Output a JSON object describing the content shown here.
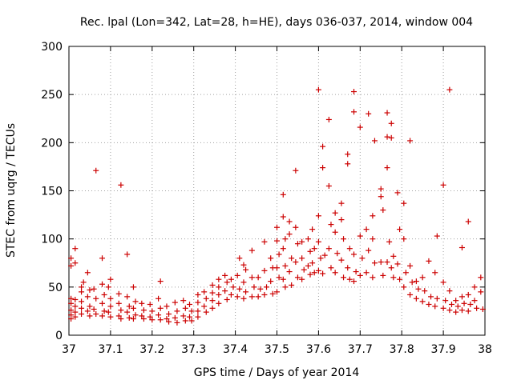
{
  "chart_data": {
    "type": "scatter",
    "title": "Rec. lpal (Lon=342, Lat=28, h=HE), days 036-037, 2014, window 004",
    "xlabel": "GPS time / Days of year 2014",
    "ylabel": "STEC from uqrg / TECUs",
    "xlim": [
      37,
      38
    ],
    "ylim": [
      0,
      300
    ],
    "xticks": [
      "37",
      "37.1",
      "37.2",
      "37.3",
      "37.4",
      "37.5",
      "37.6",
      "37.7",
      "37.8",
      "37.9",
      "38"
    ],
    "yticks": [
      "0",
      "50",
      "100",
      "150",
      "200",
      "250",
      "300"
    ],
    "grid": true,
    "marker": "plus",
    "color": "#cc0000",
    "points": [
      [
        37.005,
        80
      ],
      [
        37.005,
        72
      ],
      [
        37.005,
        38
      ],
      [
        37.005,
        33
      ],
      [
        37.005,
        26
      ],
      [
        37.005,
        21
      ],
      [
        37.005,
        17
      ],
      [
        37.015,
        90
      ],
      [
        37.015,
        75
      ],
      [
        37.015,
        37
      ],
      [
        37.015,
        30
      ],
      [
        37.015,
        24
      ],
      [
        37.015,
        19
      ],
      [
        37.03,
        50
      ],
      [
        37.035,
        55
      ],
      [
        37.03,
        45
      ],
      [
        37.03,
        35
      ],
      [
        37.03,
        28
      ],
      [
        37.03,
        22
      ],
      [
        37.045,
        65
      ],
      [
        37.05,
        47
      ],
      [
        37.045,
        40
      ],
      [
        37.05,
        30
      ],
      [
        37.045,
        25
      ],
      [
        37.05,
        20
      ],
      [
        37.065,
        171
      ],
      [
        37.06,
        48
      ],
      [
        37.065,
        38
      ],
      [
        37.06,
        27
      ],
      [
        37.065,
        22
      ],
      [
        37.08,
        80
      ],
      [
        37.08,
        53
      ],
      [
        37.085,
        42
      ],
      [
        37.08,
        33
      ],
      [
        37.085,
        25
      ],
      [
        37.08,
        20
      ],
      [
        37.1,
        58
      ],
      [
        37.095,
        50
      ],
      [
        37.1,
        38
      ],
      [
        37.1,
        30
      ],
      [
        37.095,
        24
      ],
      [
        37.1,
        19
      ],
      [
        37.125,
        156
      ],
      [
        37.12,
        43
      ],
      [
        37.12,
        33
      ],
      [
        37.125,
        26
      ],
      [
        37.12,
        20
      ],
      [
        37.125,
        17
      ],
      [
        37.14,
        84
      ],
      [
        37.14,
        40
      ],
      [
        37.145,
        30
      ],
      [
        37.14,
        24
      ],
      [
        37.145,
        18
      ],
      [
        37.155,
        50
      ],
      [
        37.16,
        35
      ],
      [
        37.155,
        28
      ],
      [
        37.16,
        21
      ],
      [
        37.155,
        17
      ],
      [
        37.175,
        33
      ],
      [
        37.18,
        26
      ],
      [
        37.175,
        20
      ],
      [
        37.18,
        17
      ],
      [
        37.195,
        32
      ],
      [
        37.2,
        25
      ],
      [
        37.195,
        19
      ],
      [
        37.2,
        16
      ],
      [
        37.22,
        56
      ],
      [
        37.215,
        38
      ],
      [
        37.22,
        28
      ],
      [
        37.215,
        21
      ],
      [
        37.22,
        16
      ],
      [
        37.235,
        30
      ],
      [
        37.24,
        22
      ],
      [
        37.235,
        17
      ],
      [
        37.24,
        14
      ],
      [
        37.255,
        34
      ],
      [
        37.26,
        25
      ],
      [
        37.255,
        18
      ],
      [
        37.26,
        13
      ],
      [
        37.275,
        36
      ],
      [
        37.28,
        28
      ],
      [
        37.275,
        20
      ],
      [
        37.28,
        15
      ],
      [
        37.29,
        32
      ],
      [
        37.295,
        25
      ],
      [
        37.29,
        19
      ],
      [
        37.295,
        15
      ],
      [
        37.31,
        42
      ],
      [
        37.31,
        34
      ],
      [
        37.31,
        25
      ],
      [
        37.31,
        19
      ],
      [
        37.325,
        45
      ],
      [
        37.33,
        38
      ],
      [
        37.325,
        30
      ],
      [
        37.33,
        24
      ],
      [
        37.345,
        52
      ],
      [
        37.345,
        44
      ],
      [
        37.345,
        36
      ],
      [
        37.345,
        28
      ],
      [
        37.36,
        58
      ],
      [
        37.36,
        50
      ],
      [
        37.36,
        42
      ],
      [
        37.36,
        33
      ],
      [
        37.375,
        62
      ],
      [
        37.38,
        55
      ],
      [
        37.375,
        46
      ],
      [
        37.38,
        37
      ],
      [
        37.39,
        58
      ],
      [
        37.395,
        50
      ],
      [
        37.39,
        42
      ],
      [
        37.41,
        80
      ],
      [
        37.405,
        62
      ],
      [
        37.41,
        48
      ],
      [
        37.405,
        40
      ],
      [
        37.42,
        73
      ],
      [
        37.425,
        68
      ],
      [
        37.42,
        55
      ],
      [
        37.425,
        45
      ],
      [
        37.42,
        38
      ],
      [
        37.44,
        88
      ],
      [
        37.44,
        60
      ],
      [
        37.445,
        50
      ],
      [
        37.44,
        40
      ],
      [
        37.455,
        60
      ],
      [
        37.46,
        48
      ],
      [
        37.455,
        40
      ],
      [
        37.47,
        97
      ],
      [
        37.47,
        67
      ],
      [
        37.475,
        50
      ],
      [
        37.47,
        42
      ],
      [
        37.485,
        80
      ],
      [
        37.49,
        70
      ],
      [
        37.485,
        56
      ],
      [
        37.49,
        43
      ],
      [
        37.5,
        112
      ],
      [
        37.5,
        98
      ],
      [
        37.505,
        84
      ],
      [
        37.5,
        70
      ],
      [
        37.505,
        60
      ],
      [
        37.5,
        45
      ],
      [
        37.515,
        146
      ],
      [
        37.515,
        123
      ],
      [
        37.52,
        100
      ],
      [
        37.515,
        90
      ],
      [
        37.52,
        72
      ],
      [
        37.515,
        58
      ],
      [
        37.52,
        50
      ],
      [
        37.53,
        118
      ],
      [
        37.53,
        105
      ],
      [
        37.535,
        80
      ],
      [
        37.53,
        66
      ],
      [
        37.535,
        52
      ],
      [
        37.545,
        171
      ],
      [
        37.545,
        112
      ],
      [
        37.55,
        95
      ],
      [
        37.545,
        76
      ],
      [
        37.55,
        60
      ],
      [
        37.56,
        97
      ],
      [
        37.56,
        80
      ],
      [
        37.565,
        68
      ],
      [
        37.56,
        58
      ],
      [
        37.575,
        100
      ],
      [
        37.58,
        87
      ],
      [
        37.575,
        72
      ],
      [
        37.58,
        63
      ],
      [
        37.585,
        110
      ],
      [
        37.59,
        90
      ],
      [
        37.585,
        75
      ],
      [
        37.59,
        65
      ],
      [
        37.6,
        255
      ],
      [
        37.6,
        124
      ],
      [
        37.6,
        97
      ],
      [
        37.605,
        80
      ],
      [
        37.6,
        67
      ],
      [
        37.61,
        196
      ],
      [
        37.61,
        174
      ],
      [
        37.615,
        83
      ],
      [
        37.61,
        64
      ],
      [
        37.625,
        224
      ],
      [
        37.625,
        155
      ],
      [
        37.63,
        115
      ],
      [
        37.625,
        90
      ],
      [
        37.63,
        70
      ],
      [
        37.64,
        127
      ],
      [
        37.64,
        107
      ],
      [
        37.645,
        85
      ],
      [
        37.64,
        65
      ],
      [
        37.655,
        137
      ],
      [
        37.655,
        120
      ],
      [
        37.66,
        100
      ],
      [
        37.655,
        78
      ],
      [
        37.66,
        60
      ],
      [
        37.67,
        188
      ],
      [
        37.67,
        178
      ],
      [
        37.675,
        90
      ],
      [
        37.67,
        70
      ],
      [
        37.675,
        58
      ],
      [
        37.685,
        253
      ],
      [
        37.685,
        232
      ],
      [
        37.685,
        84
      ],
      [
        37.69,
        66
      ],
      [
        37.685,
        56
      ],
      [
        37.7,
        216
      ],
      [
        37.7,
        103
      ],
      [
        37.705,
        80
      ],
      [
        37.7,
        62
      ],
      [
        37.72,
        230
      ],
      [
        37.715,
        110
      ],
      [
        37.72,
        88
      ],
      [
        37.715,
        65
      ],
      [
        37.73,
        124
      ],
      [
        37.735,
        202
      ],
      [
        37.73,
        100
      ],
      [
        37.735,
        75
      ],
      [
        37.73,
        60
      ],
      [
        37.75,
        152
      ],
      [
        37.75,
        144
      ],
      [
        37.755,
        130
      ],
      [
        37.75,
        76
      ],
      [
        37.755,
        62
      ],
      [
        37.765,
        231
      ],
      [
        37.765,
        206
      ],
      [
        37.765,
        174
      ],
      [
        37.77,
        97
      ],
      [
        37.765,
        76
      ],
      [
        37.775,
        220
      ],
      [
        37.775,
        205
      ],
      [
        37.78,
        82
      ],
      [
        37.775,
        70
      ],
      [
        37.78,
        60
      ],
      [
        37.79,
        148
      ],
      [
        37.795,
        110
      ],
      [
        37.79,
        74
      ],
      [
        37.795,
        58
      ],
      [
        37.805,
        137
      ],
      [
        37.805,
        100
      ],
      [
        37.81,
        65
      ],
      [
        37.805,
        50
      ],
      [
        37.82,
        202
      ],
      [
        37.82,
        72
      ],
      [
        37.825,
        55
      ],
      [
        37.82,
        42
      ],
      [
        37.835,
        56
      ],
      [
        37.84,
        48
      ],
      [
        37.835,
        38
      ],
      [
        37.85,
        60
      ],
      [
        37.855,
        46
      ],
      [
        37.85,
        35
      ],
      [
        37.865,
        77
      ],
      [
        37.87,
        40
      ],
      [
        37.865,
        32
      ],
      [
        37.885,
        103
      ],
      [
        37.88,
        65
      ],
      [
        37.885,
        38
      ],
      [
        37.88,
        30
      ],
      [
        37.9,
        156
      ],
      [
        37.9,
        55
      ],
      [
        37.905,
        36
      ],
      [
        37.9,
        28
      ],
      [
        37.915,
        255
      ],
      [
        37.915,
        46
      ],
      [
        37.92,
        32
      ],
      [
        37.915,
        26
      ],
      [
        37.93,
        36
      ],
      [
        37.935,
        30
      ],
      [
        37.93,
        24
      ],
      [
        37.945,
        91
      ],
      [
        37.945,
        40
      ],
      [
        37.95,
        33
      ],
      [
        37.945,
        26
      ],
      [
        37.96,
        118
      ],
      [
        37.96,
        42
      ],
      [
        37.965,
        32
      ],
      [
        37.96,
        25
      ],
      [
        37.975,
        50
      ],
      [
        37.975,
        36
      ],
      [
        37.98,
        28
      ],
      [
        37.99,
        60
      ],
      [
        37.99,
        45
      ],
      [
        37.995,
        27
      ]
    ]
  }
}
